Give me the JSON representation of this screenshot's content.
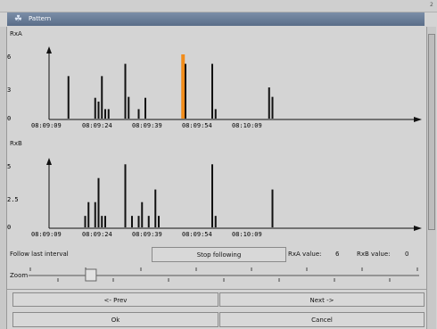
{
  "window": {
    "title": "Pattern",
    "edge_label": "2"
  },
  "charts": {
    "a": {
      "label": "RxA",
      "y_ticks": [
        "6",
        "3",
        "0"
      ],
      "x_ticks": [
        "08:09:09",
        "08:09:24",
        "08:09:39",
        "08:09:54",
        "08:10:09"
      ]
    },
    "b": {
      "label": "RxB",
      "y_ticks": [
        "5",
        "2.5",
        "0"
      ],
      "x_ticks": [
        "08:09:09",
        "08:09:24",
        "08:09:39",
        "08:09:54",
        "08:10:09"
      ]
    }
  },
  "chart_data": [
    {
      "type": "bar",
      "series_label": "RxA",
      "x_unit": "seconds from 08:09:09",
      "x_ticks": [
        "08:09:09",
        "08:09:24",
        "08:09:39",
        "08:09:54",
        "08:10:09"
      ],
      "ylim": [
        0,
        6.8
      ],
      "x": [
        5,
        13,
        14,
        15,
        16,
        17,
        22,
        23,
        26,
        28,
        39,
        40,
        48,
        49,
        65,
        66
      ],
      "values": [
        4.5,
        2.2,
        1.8,
        4.5,
        1.0,
        1.0,
        5.8,
        2.3,
        1.0,
        2.2,
        6.8,
        5.8,
        5.8,
        1.0,
        3.3,
        2.3
      ],
      "highlight": {
        "x": 39,
        "color": "#f28c1a"
      },
      "bar_color": "#111111"
    },
    {
      "type": "bar",
      "series_label": "RxB",
      "x_unit": "seconds from 08:09:09",
      "x_ticks": [
        "08:09:09",
        "08:09:24",
        "08:09:39",
        "08:09:54",
        "08:10:09"
      ],
      "ylim": [
        0,
        5.6
      ],
      "x": [
        10,
        11,
        13,
        14,
        15,
        16,
        22,
        24,
        26,
        27,
        29,
        31,
        32,
        48,
        49,
        66
      ],
      "values": [
        1.0,
        2.2,
        2.2,
        4.3,
        1.0,
        1.0,
        5.5,
        1.0,
        1.0,
        2.2,
        1.0,
        3.3,
        1.0,
        5.5,
        1.0,
        3.3
      ],
      "bar_color": "#111111"
    }
  ],
  "controls": {
    "follow_label": "Follow last interval",
    "stop_button": "Stop following",
    "rxa_value_label": "RxA value:",
    "rxa_value": "6",
    "rxb_value_label": "RxB value:",
    "rxb_value": "0",
    "zoom_label": "Zoom"
  },
  "zoom": {
    "value": 0.15
  },
  "nav": {
    "prev": "<- Prev",
    "next": "Next ->"
  },
  "dialog": {
    "ok": "Ok",
    "cancel": "Cancel"
  },
  "colors": {
    "highlight": "#f28c1a",
    "title_bar": "#6a7d97",
    "background": "#d4d4d4"
  }
}
